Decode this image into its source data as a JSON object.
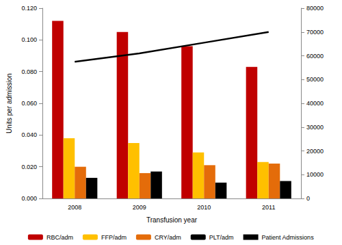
{
  "chart_data": {
    "type": "bar",
    "x_label": "Transfusion year",
    "y_label": "Units per admission",
    "categories": [
      "2008",
      "2009",
      "2010",
      "2011"
    ],
    "series": [
      {
        "name": "RBC/adm",
        "type": "bar",
        "color": "#c00000",
        "values": [
          0.112,
          0.105,
          0.096,
          0.083
        ]
      },
      {
        "name": "FFP/adm",
        "type": "bar",
        "color": "#ffc000",
        "values": [
          0.038,
          0.035,
          0.029,
          0.023
        ]
      },
      {
        "name": "CRY/adm",
        "type": "bar",
        "color": "#e46c0a",
        "values": [
          0.02,
          0.016,
          0.021,
          0.022
        ]
      },
      {
        "name": "PLT/adm",
        "type": "bar",
        "color": "#000000",
        "values": [
          0.013,
          0.017,
          0.01,
          0.011
        ]
      },
      {
        "name": "Patient Admissions",
        "type": "line",
        "axis": "y2",
        "color": "#000000",
        "marker": "none",
        "values": [
          57500,
          61000,
          65500,
          70000
        ]
      }
    ],
    "ylim": [
      0,
      0.12
    ],
    "yticks": [
      {
        "value": 0,
        "label": "0.000"
      },
      {
        "value": 0.02,
        "label": "0.020"
      },
      {
        "value": 0.04,
        "label": "0.040"
      },
      {
        "value": 0.06,
        "label": "0.060"
      },
      {
        "value": 0.08,
        "label": "0.080"
      },
      {
        "value": 0.1,
        "label": "0.100"
      },
      {
        "value": 0.12,
        "label": "0.120"
      }
    ],
    "y2lim": [
      0,
      80000
    ],
    "y2ticks": [
      0,
      10000,
      20000,
      30000,
      40000,
      50000,
      60000,
      70000,
      80000
    ],
    "grid": false,
    "legend": "bottom"
  }
}
